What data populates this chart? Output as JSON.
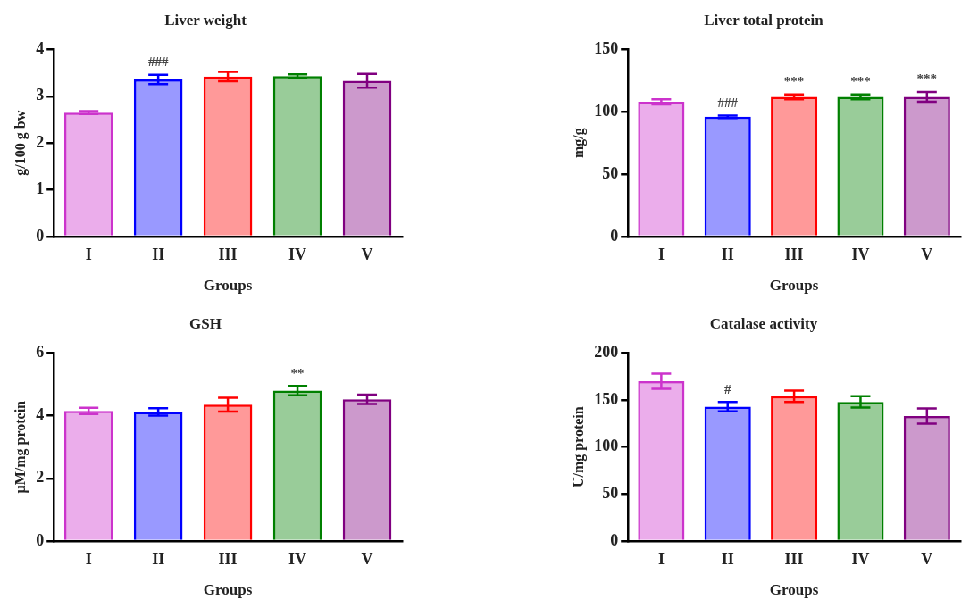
{
  "chart_data": [
    {
      "type": "bar",
      "title": "Liver weight",
      "xlabel": "Groups",
      "ylabel": "g/100 g bw",
      "categories": [
        "I",
        "II",
        "III",
        "IV",
        "V"
      ],
      "values": [
        2.65,
        3.36,
        3.42,
        3.43,
        3.33
      ],
      "errors": [
        0.03,
        0.1,
        0.1,
        0.04,
        0.15
      ],
      "colors": [
        "#cc33cc",
        "#0000ff",
        "#ff0000",
        "#008000",
        "#800080"
      ],
      "ylim": [
        0,
        4
      ],
      "yticks": [
        0,
        1,
        2,
        3,
        4
      ],
      "grid": false,
      "legend": false,
      "annotations": [
        {
          "text": "###",
          "x": "II",
          "y": 3.46
        }
      ]
    },
    {
      "type": "bar",
      "title": "Liver total protein",
      "xlabel": "Groups",
      "ylabel": "mg/g",
      "categories": [
        "I",
        "II",
        "III",
        "IV",
        "V"
      ],
      "values": [
        108,
        96,
        112,
        112,
        112
      ],
      "errors": [
        2,
        1,
        2,
        2,
        4
      ],
      "colors": [
        "#cc33cc",
        "#0000ff",
        "#ff0000",
        "#008000",
        "#800080"
      ],
      "ylim": [
        0,
        150
      ],
      "yticks": [
        0,
        50,
        100,
        150
      ],
      "grid": false,
      "legend": false,
      "annotations": [
        {
          "text": "###",
          "x": "II",
          "y": 97
        },
        {
          "text": "***",
          "x": "III",
          "y": 114
        },
        {
          "text": "***",
          "x": "IV",
          "y": 114
        },
        {
          "text": "***",
          "x": "V",
          "y": 116
        }
      ]
    },
    {
      "type": "bar",
      "title": "GSH",
      "xlabel": "Groups",
      "ylabel": "μM/mg protein",
      "categories": [
        "I",
        "II",
        "III",
        "IV",
        "V"
      ],
      "values": [
        4.15,
        4.12,
        4.35,
        4.8,
        4.52
      ],
      "errors": [
        0.1,
        0.12,
        0.22,
        0.15,
        0.15
      ],
      "colors": [
        "#cc33cc",
        "#0000ff",
        "#ff0000",
        "#008000",
        "#800080"
      ],
      "ylim": [
        0,
        6
      ],
      "yticks": [
        0,
        2,
        4,
        6
      ],
      "grid": false,
      "legend": false,
      "annotations": [
        {
          "text": "**",
          "x": "IV",
          "y": 4.95
        }
      ]
    },
    {
      "type": "bar",
      "title": "Catalase activity",
      "xlabel": "Groups",
      "ylabel": "U/mg protein",
      "categories": [
        "I",
        "II",
        "III",
        "IV",
        "V"
      ],
      "values": [
        170,
        143,
        154,
        148,
        133
      ],
      "errors": [
        8,
        5,
        6,
        6,
        8
      ],
      "colors": [
        "#cc33cc",
        "#0000ff",
        "#ff0000",
        "#008000",
        "#800080"
      ],
      "ylim": [
        0,
        200
      ],
      "yticks": [
        0,
        50,
        100,
        150,
        200
      ],
      "grid": false,
      "legend": false,
      "annotations": [
        {
          "text": "#",
          "x": "II",
          "y": 148
        }
      ]
    }
  ]
}
